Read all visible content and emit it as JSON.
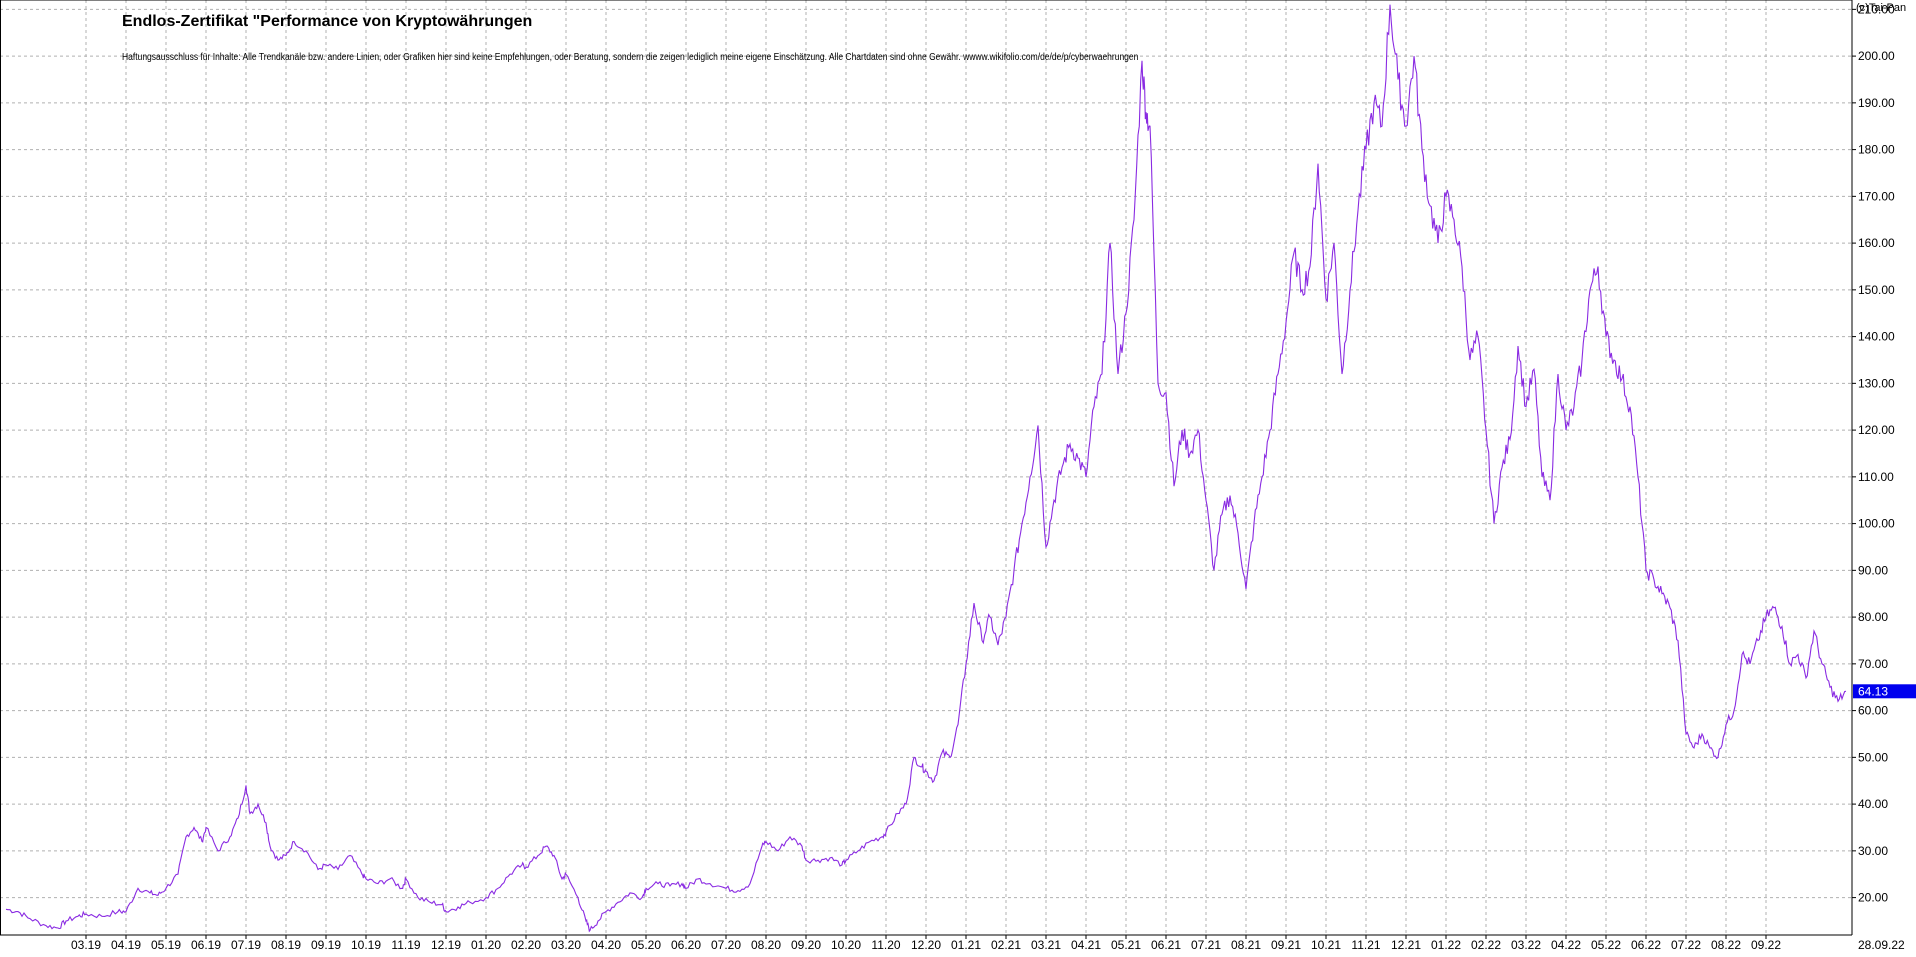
{
  "header": {
    "title": "Endlos-Zertifikat \"Performance von Kryptowährungen",
    "disclaimer": "Haftungsausschluss für Inhalte: Alle Trendkanäle bzw. andere Linien, oder Grafiken hier sind keine Empfehlungen, oder Beratung, sondern die zeigen lediglich meine eigene Einschätzung. Alle Chartdaten sind ohne Gewähr.  wwww.wikifolio.com/de/de/p/cyberwaehrungen",
    "copyright": "(c)Tai-Pan"
  },
  "chart_data": {
    "type": "line",
    "title": "Endlos-Zertifikat \"Performance von Kryptowährungen",
    "xlabel": "",
    "ylabel": "",
    "ylim": [
      12,
      212
    ],
    "grid": true,
    "series_color": "#8a2be2",
    "current_value_color": "#0000ee",
    "current_value_label": "64.13",
    "last_date_label": "28.09.22",
    "y_ticks": [
      20,
      30,
      40,
      50,
      60,
      70,
      80,
      90,
      100,
      110,
      120,
      130,
      140,
      150,
      160,
      170,
      180,
      190,
      200,
      210
    ],
    "y_tick_labels": [
      "20.00",
      "30.00",
      "40.00",
      "50.00",
      "60.00",
      "70.00",
      "80.00",
      "90.00",
      "100.00",
      "110.00",
      "120.00",
      "130.00",
      "140.00",
      "150.00",
      "160.00",
      "170.00",
      "180.00",
      "190.00",
      "200.00",
      "210.00"
    ],
    "x_ticks": [
      {
        "label": "03.19",
        "t": 2.0
      },
      {
        "label": "04.19",
        "t": 3.0
      },
      {
        "label": "05.19",
        "t": 4.0
      },
      {
        "label": "06.19",
        "t": 5.0
      },
      {
        "label": "07.19",
        "t": 6.0
      },
      {
        "label": "08.19",
        "t": 7.0
      },
      {
        "label": "09.19",
        "t": 8.0
      },
      {
        "label": "10.19",
        "t": 9.0
      },
      {
        "label": "11.19",
        "t": 10.0
      },
      {
        "label": "12.19",
        "t": 11.0
      },
      {
        "label": "01.20",
        "t": 12.0
      },
      {
        "label": "02.20",
        "t": 13.0
      },
      {
        "label": "03.20",
        "t": 14.0
      },
      {
        "label": "04.20",
        "t": 15.0
      },
      {
        "label": "05.20",
        "t": 16.0
      },
      {
        "label": "06.20",
        "t": 17.0
      },
      {
        "label": "07.20",
        "t": 18.0
      },
      {
        "label": "08.20",
        "t": 19.0
      },
      {
        "label": "09.20",
        "t": 20.0
      },
      {
        "label": "10.20",
        "t": 21.0
      },
      {
        "label": "11.20",
        "t": 22.0
      },
      {
        "label": "12.20",
        "t": 23.0
      },
      {
        "label": "01.21",
        "t": 24.0
      },
      {
        "label": "02.21",
        "t": 25.0
      },
      {
        "label": "03.21",
        "t": 26.0
      },
      {
        "label": "04.21",
        "t": 27.0
      },
      {
        "label": "05.21",
        "t": 28.0
      },
      {
        "label": "06.21",
        "t": 29.0
      },
      {
        "label": "07.21",
        "t": 30.0
      },
      {
        "label": "08.21",
        "t": 31.0
      },
      {
        "label": "09.21",
        "t": 32.0
      },
      {
        "label": "10.21",
        "t": 33.0
      },
      {
        "label": "11.21",
        "t": 34.0
      },
      {
        "label": "12.21",
        "t": 35.0
      },
      {
        "label": "01.22",
        "t": 36.0
      },
      {
        "label": "02.22",
        "t": 37.0
      },
      {
        "label": "03.22",
        "t": 38.0
      },
      {
        "label": "04.22",
        "t": 39.0
      },
      {
        "label": "05.22",
        "t": 40.0
      },
      {
        "label": "06.22",
        "t": 41.0
      },
      {
        "label": "07.22",
        "t": 42.0
      },
      {
        "label": "08.22",
        "t": 43.0
      },
      {
        "label": "09.22",
        "t": 44.0
      }
    ],
    "series": [
      {
        "points": [
          [
            0.0,
            17.5
          ],
          [
            0.3,
            17.0
          ],
          [
            0.6,
            15.5
          ],
          [
            1.0,
            14.0
          ],
          [
            1.3,
            13.5
          ],
          [
            1.5,
            15.0
          ],
          [
            1.8,
            16.0
          ],
          [
            2.0,
            16.5
          ],
          [
            2.4,
            16.0
          ],
          [
            2.8,
            17.0
          ],
          [
            3.0,
            17.0
          ],
          [
            3.3,
            22.0
          ],
          [
            3.6,
            21.0
          ],
          [
            3.8,
            20.5
          ],
          [
            4.0,
            22.0
          ],
          [
            4.3,
            25.0
          ],
          [
            4.5,
            33.0
          ],
          [
            4.7,
            35.0
          ],
          [
            4.9,
            32.0
          ],
          [
            5.0,
            35.0
          ],
          [
            5.3,
            30.0
          ],
          [
            5.6,
            33.0
          ],
          [
            5.8,
            37.0
          ],
          [
            6.0,
            44.0
          ],
          [
            6.1,
            38.0
          ],
          [
            6.3,
            40.0
          ],
          [
            6.5,
            36.0
          ],
          [
            6.6,
            31.0
          ],
          [
            6.8,
            28.0
          ],
          [
            7.0,
            29.0
          ],
          [
            7.2,
            32.0
          ],
          [
            7.5,
            30.0
          ],
          [
            7.8,
            26.0
          ],
          [
            8.0,
            27.0
          ],
          [
            8.3,
            26.0
          ],
          [
            8.6,
            29.0
          ],
          [
            8.9,
            25.0
          ],
          [
            9.0,
            24.0
          ],
          [
            9.3,
            23.0
          ],
          [
            9.6,
            24.0
          ],
          [
            9.9,
            22.0
          ],
          [
            10.0,
            24.0
          ],
          [
            10.3,
            20.0
          ],
          [
            10.6,
            19.0
          ],
          [
            10.9,
            18.5
          ],
          [
            11.0,
            17.0
          ],
          [
            11.3,
            18.0
          ],
          [
            11.6,
            19.0
          ],
          [
            12.0,
            20.0
          ],
          [
            12.3,
            22.0
          ],
          [
            12.6,
            25.0
          ],
          [
            12.9,
            27.0
          ],
          [
            13.0,
            26.5
          ],
          [
            13.3,
            29.0
          ],
          [
            13.5,
            31.0
          ],
          [
            13.7,
            29.0
          ],
          [
            13.9,
            24.0
          ],
          [
            14.0,
            25.0
          ],
          [
            14.3,
            20.0
          ],
          [
            14.5,
            15.0
          ],
          [
            14.6,
            13.0
          ],
          [
            14.8,
            15.0
          ],
          [
            15.0,
            17.0
          ],
          [
            15.3,
            19.0
          ],
          [
            15.6,
            21.0
          ],
          [
            15.9,
            20.0
          ],
          [
            16.0,
            22.0
          ],
          [
            16.3,
            23.0
          ],
          [
            16.6,
            22.5
          ],
          [
            16.9,
            23.0
          ],
          [
            17.0,
            22.0
          ],
          [
            17.3,
            24.0
          ],
          [
            17.6,
            23.0
          ],
          [
            18.0,
            22.0
          ],
          [
            18.3,
            21.5
          ],
          [
            18.6,
            23.0
          ],
          [
            18.9,
            31.0
          ],
          [
            19.0,
            32.0
          ],
          [
            19.3,
            30.0
          ],
          [
            19.6,
            33.0
          ],
          [
            19.9,
            31.0
          ],
          [
            20.0,
            28.0
          ],
          [
            20.3,
            28.0
          ],
          [
            20.6,
            28.5
          ],
          [
            20.9,
            27.0
          ],
          [
            21.0,
            28.0
          ],
          [
            21.3,
            30.0
          ],
          [
            21.6,
            32.0
          ],
          [
            21.9,
            33.0
          ],
          [
            22.0,
            34.0
          ],
          [
            22.3,
            38.0
          ],
          [
            22.5,
            40.0
          ],
          [
            22.7,
            50.0
          ],
          [
            22.9,
            48.0
          ],
          [
            23.0,
            47.0
          ],
          [
            23.2,
            45.0
          ],
          [
            23.4,
            51.0
          ],
          [
            23.6,
            50.0
          ],
          [
            23.8,
            57.0
          ],
          [
            24.0,
            70.0
          ],
          [
            24.2,
            83.0
          ],
          [
            24.4,
            75.0
          ],
          [
            24.6,
            80.0
          ],
          [
            24.8,
            74.0
          ],
          [
            25.0,
            80.0
          ],
          [
            25.2,
            90.0
          ],
          [
            25.4,
            100.0
          ],
          [
            25.6,
            110.0
          ],
          [
            25.8,
            121.0
          ],
          [
            26.0,
            95.0
          ],
          [
            26.2,
            105.0
          ],
          [
            26.4,
            112.0
          ],
          [
            26.6,
            117.0
          ],
          [
            26.8,
            114.0
          ],
          [
            27.0,
            110.0
          ],
          [
            27.2,
            125.0
          ],
          [
            27.4,
            132.0
          ],
          [
            27.6,
            160.0
          ],
          [
            27.8,
            132.0
          ],
          [
            28.0,
            145.0
          ],
          [
            28.2,
            165.0
          ],
          [
            28.4,
            199.0
          ],
          [
            28.5,
            188.0
          ],
          [
            28.6,
            185.0
          ],
          [
            28.8,
            130.0
          ],
          [
            29.0,
            128.0
          ],
          [
            29.2,
            108.0
          ],
          [
            29.4,
            120.0
          ],
          [
            29.6,
            115.0
          ],
          [
            29.8,
            120.0
          ],
          [
            30.0,
            105.0
          ],
          [
            30.2,
            90.0
          ],
          [
            30.4,
            102.0
          ],
          [
            30.6,
            106.0
          ],
          [
            30.8,
            98.0
          ],
          [
            31.0,
            86.0
          ],
          [
            31.2,
            100.0
          ],
          [
            31.4,
            110.0
          ],
          [
            31.6,
            120.0
          ],
          [
            31.8,
            132.0
          ],
          [
            32.0,
            143.0
          ],
          [
            32.2,
            158.0
          ],
          [
            32.4,
            150.0
          ],
          [
            32.6,
            155.0
          ],
          [
            32.8,
            177.0
          ],
          [
            33.0,
            148.0
          ],
          [
            33.2,
            160.0
          ],
          [
            33.4,
            132.0
          ],
          [
            33.6,
            150.0
          ],
          [
            33.8,
            167.0
          ],
          [
            34.0,
            180.0
          ],
          [
            34.2,
            190.0
          ],
          [
            34.4,
            185.0
          ],
          [
            34.6,
            211.0
          ],
          [
            34.8,
            195.0
          ],
          [
            35.0,
            185.0
          ],
          [
            35.2,
            200.0
          ],
          [
            35.4,
            180.0
          ],
          [
            35.6,
            168.0
          ],
          [
            35.8,
            160.0
          ],
          [
            36.0,
            170.0
          ],
          [
            36.2,
            165.0
          ],
          [
            36.4,
            155.0
          ],
          [
            36.6,
            135.0
          ],
          [
            36.8,
            140.0
          ],
          [
            37.0,
            120.0
          ],
          [
            37.2,
            100.0
          ],
          [
            37.4,
            112.0
          ],
          [
            37.6,
            118.0
          ],
          [
            37.8,
            138.0
          ],
          [
            38.0,
            125.0
          ],
          [
            38.2,
            133.0
          ],
          [
            38.4,
            110.0
          ],
          [
            38.6,
            105.0
          ],
          [
            38.8,
            132.0
          ],
          [
            39.0,
            120.0
          ],
          [
            39.2,
            125.0
          ],
          [
            39.4,
            135.0
          ],
          [
            39.6,
            150.0
          ],
          [
            39.8,
            155.0
          ],
          [
            40.0,
            140.0
          ],
          [
            40.2,
            135.0
          ],
          [
            40.4,
            131.0
          ],
          [
            40.6,
            125.0
          ],
          [
            40.8,
            110.0
          ],
          [
            41.0,
            90.0
          ],
          [
            41.2,
            88.0
          ],
          [
            41.4,
            85.0
          ],
          [
            41.6,
            82.0
          ],
          [
            41.8,
            75.0
          ],
          [
            42.0,
            55.0
          ],
          [
            42.2,
            52.0
          ],
          [
            42.4,
            55.0
          ],
          [
            42.6,
            52.0
          ],
          [
            42.8,
            50.0
          ],
          [
            43.0,
            57.0
          ],
          [
            43.2,
            60.0
          ],
          [
            43.4,
            72.0
          ],
          [
            43.6,
            70.0
          ],
          [
            43.8,
            75.0
          ],
          [
            44.0,
            80.0
          ],
          [
            44.2,
            82.0
          ],
          [
            44.4,
            78.0
          ],
          [
            44.6,
            70.0
          ],
          [
            44.8,
            72.0
          ],
          [
            45.0,
            67.0
          ],
          [
            45.2,
            77.0
          ],
          [
            45.4,
            70.0
          ],
          [
            45.6,
            65.0
          ],
          [
            45.8,
            62.0
          ],
          [
            46.0,
            64.13
          ]
        ]
      }
    ]
  }
}
